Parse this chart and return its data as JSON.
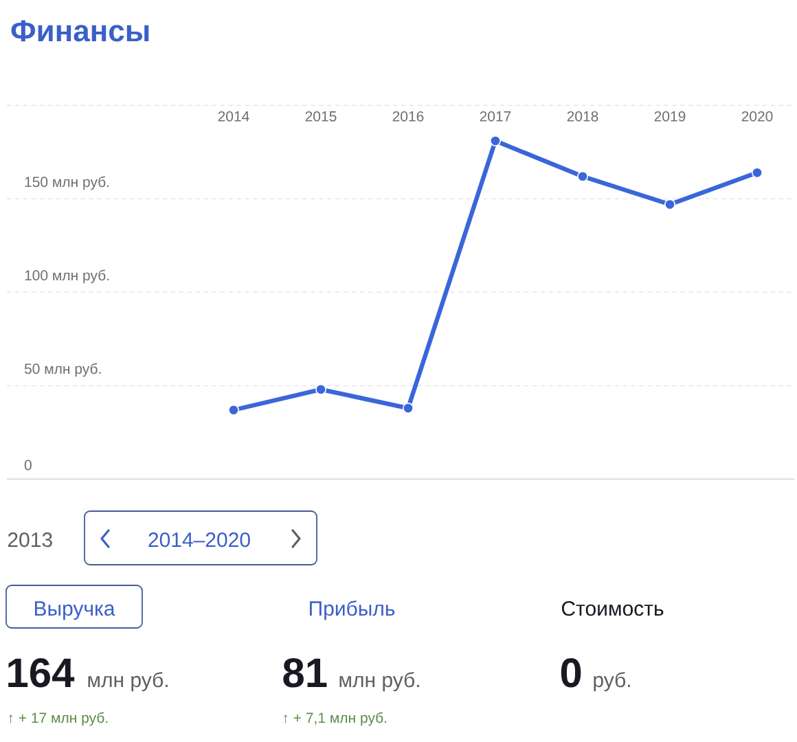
{
  "chart_data": [
    {
      "type": "line",
      "title": "Финансы",
      "categories": [
        "2014",
        "2015",
        "2016",
        "2017",
        "2018",
        "2019",
        "2020"
      ],
      "series": [
        {
          "color": "#3a66d9",
          "values": [
            37,
            48,
            38,
            181,
            162,
            147,
            164
          ]
        }
      ],
      "ylim": [
        0,
        200
      ],
      "yticks": [
        0,
        {
          "value": 50,
          "label": "50 млн руб."
        },
        {
          "value": 100,
          "label": "100 млн руб."
        },
        {
          "value": 150,
          "label": "150 млн руб."
        },
        {
          "value": 200,
          "label": null
        }
      ],
      "grid": "y",
      "marker": "circle",
      "line_style": "solid"
    },
    {
      "type": "other",
      "annotations": [
        "2013",
        "2014–2020",
        "Выручка",
        "Прибыль",
        "Стоимость",
        "164",
        "млн руб.",
        "81",
        "млн руб.",
        "0",
        "руб.",
        "↑ + 17 млн руб.",
        "↑ + 7,1 млн руб."
      ]
    }
  ]
}
